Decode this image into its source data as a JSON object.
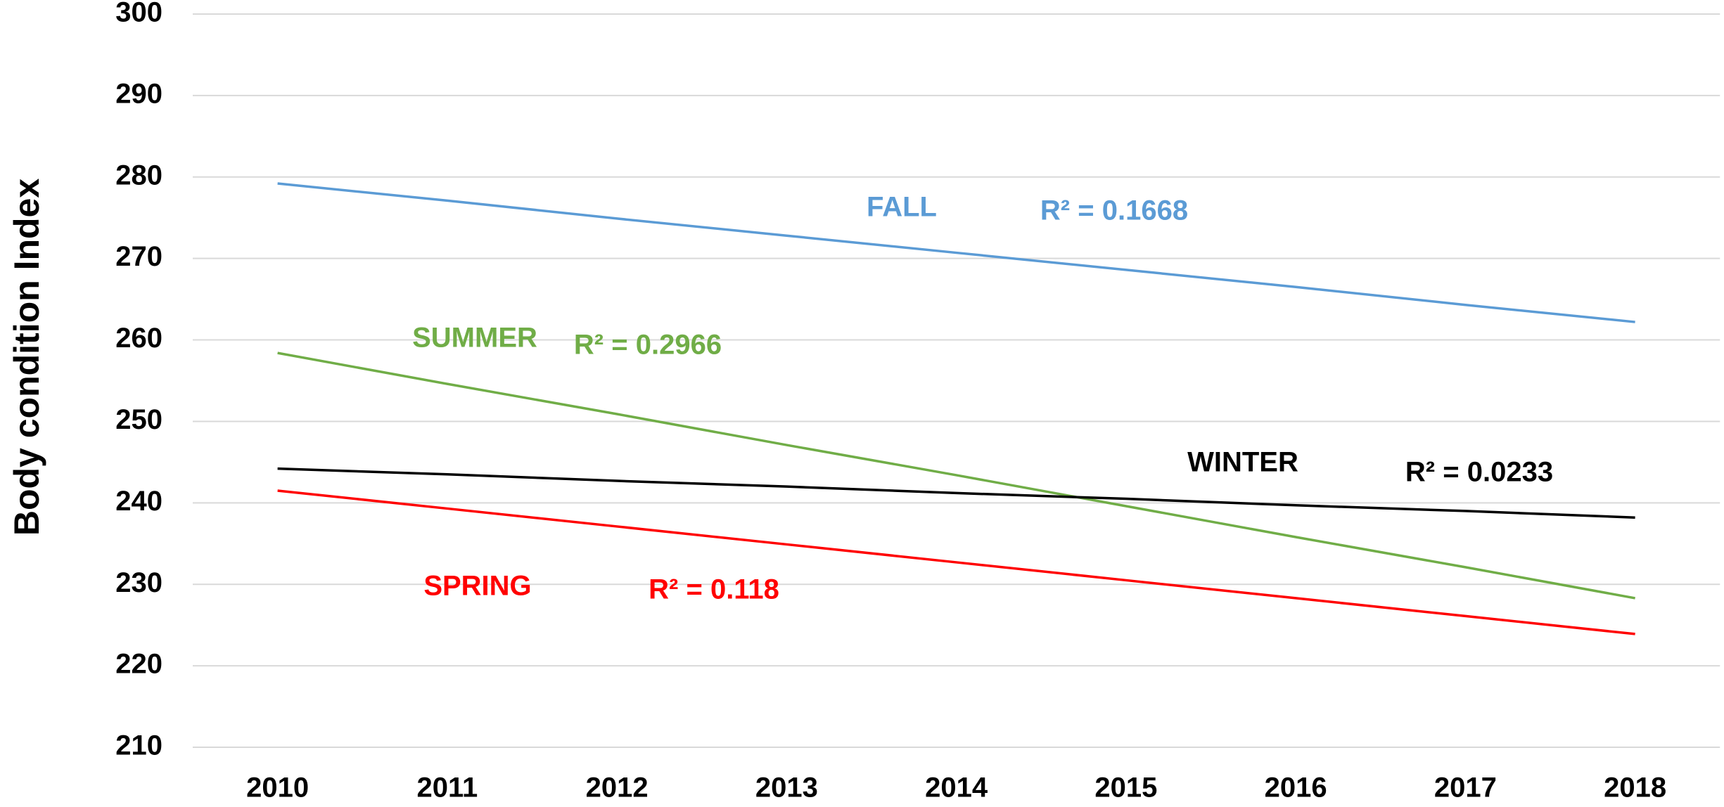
{
  "chart_data": {
    "type": "line",
    "y_label": "Body condition Index",
    "categories": [
      "2010",
      "2011",
      "2012",
      "2013",
      "2014",
      "2015",
      "2016",
      "2017",
      "2018"
    ],
    "series": [
      {
        "name": "FALL",
        "color": "#5b9bd5",
        "r2_label": "R² = 0.1668",
        "values": [
          279.2,
          277.1,
          274.9,
          272.8,
          270.7,
          268.6,
          266.5,
          264.3,
          262.2
        ]
      },
      {
        "name": "SUMMER",
        "color": "#70ad47",
        "r2_label": "R² = 0.2966",
        "values": [
          258.4,
          254.6,
          250.9,
          247.1,
          243.4,
          239.6,
          235.8,
          232.1,
          228.3
        ]
      },
      {
        "name": "WINTER",
        "color": "#000000",
        "r2_label": "R² = 0.0233",
        "values": [
          244.2,
          243.5,
          242.7,
          242.0,
          241.2,
          240.5,
          239.7,
          239.0,
          238.2
        ]
      },
      {
        "name": "SPRING",
        "color": "#ff0000",
        "r2_label": "R² = 0.118",
        "values": [
          241.5,
          239.3,
          237.1,
          234.9,
          232.7,
          230.5,
          228.3,
          226.1,
          223.9
        ]
      }
    ],
    "ylim": [
      210,
      300
    ],
    "yticks": [
      210,
      220,
      230,
      240,
      250,
      260,
      270,
      280,
      290,
      300
    ],
    "grid": true
  }
}
